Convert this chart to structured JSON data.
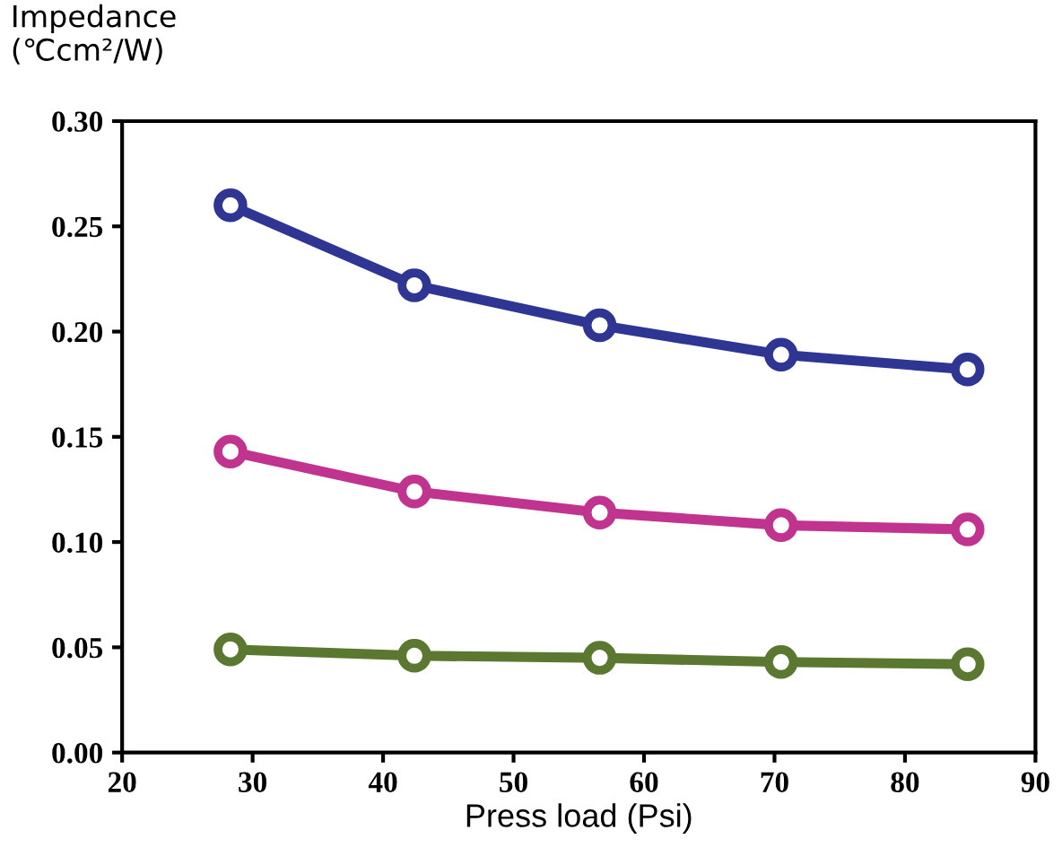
{
  "chart_data": {
    "type": "line",
    "ylabel": "Impedance\n(℃cm²/W)",
    "xlabel": "Press load (Psi)",
    "x": [
      28.3,
      42.4,
      56.6,
      70.5,
      84.8
    ],
    "series": [
      {
        "color": "#2e3592",
        "values": [
          0.26,
          0.222,
          0.203,
          0.189,
          0.182
        ]
      },
      {
        "color": "#c0338f",
        "values": [
          0.143,
          0.124,
          0.114,
          0.108,
          0.106
        ]
      },
      {
        "color": "#5b7831",
        "values": [
          0.049,
          0.046,
          0.045,
          0.043,
          0.042
        ]
      }
    ],
    "xlim": [
      20,
      90
    ],
    "xticks": [
      20,
      30,
      40,
      50,
      60,
      70,
      80,
      90
    ],
    "ylim": [
      0,
      0.3
    ],
    "yticks": [
      {
        "value": 0,
        "label": "0.00"
      },
      {
        "value": 0.05,
        "label": "0.05"
      },
      {
        "value": 0.1,
        "label": "0.10"
      },
      {
        "value": 0.15,
        "label": "0.15"
      },
      {
        "value": 0.2,
        "label": "0.20"
      },
      {
        "value": 0.25,
        "label": "0.25"
      },
      {
        "value": 0.3,
        "label": "0.30"
      }
    ],
    "grid": false,
    "marker": "circle",
    "line_style": "solid",
    "legend": false
  }
}
